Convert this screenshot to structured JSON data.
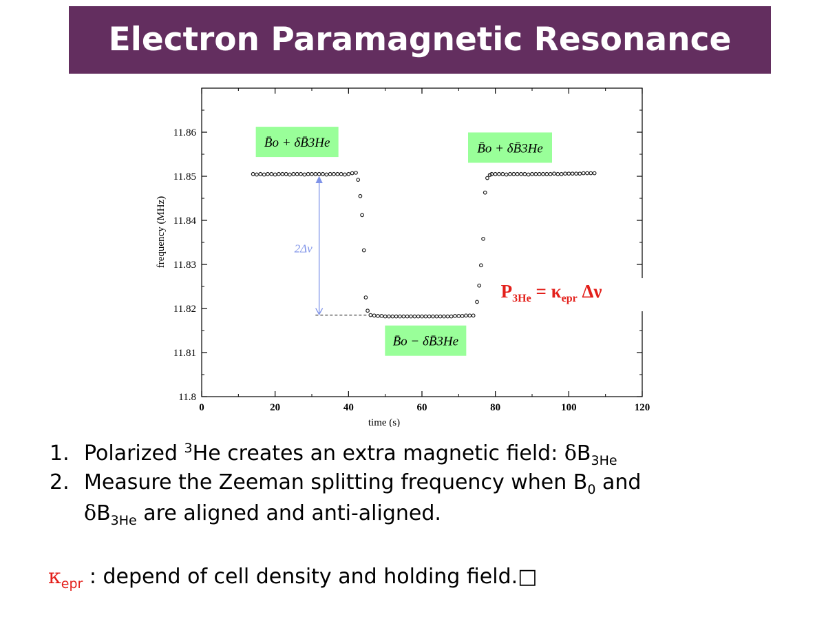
{
  "slide": {
    "title": "Electron Paramagnetic Resonance"
  },
  "chart_data": {
    "type": "scatter",
    "xlabel": "time (s)",
    "ylabel": "frequency (MHz)",
    "xlim": [
      0,
      120
    ],
    "ylim": [
      11.8,
      11.87
    ],
    "x_ticks": [
      "0",
      "20",
      "40",
      "60",
      "80",
      "100",
      "120"
    ],
    "y_ticks": [
      "11.8",
      "11.81",
      "11.82",
      "11.83",
      "11.84",
      "11.85",
      "11.86"
    ],
    "grid": false,
    "series": [
      {
        "x": [
          14,
          15,
          16,
          17,
          18,
          19,
          20,
          21,
          22,
          23,
          24,
          25,
          26,
          27,
          28,
          29,
          30,
          31,
          32,
          33,
          34,
          35,
          36,
          37,
          38,
          39,
          40,
          41,
          42,
          42.6,
          43.2,
          43.7,
          44.2,
          44.7,
          45.2,
          46,
          47,
          48,
          49,
          50,
          51,
          52,
          53,
          54,
          55,
          56,
          57,
          58,
          59,
          60,
          61,
          62,
          63,
          64,
          65,
          66,
          67,
          68,
          69,
          70,
          71,
          72,
          73,
          74,
          75,
          75.6,
          76.1,
          76.7,
          77.2,
          77.8,
          78.5,
          79,
          80,
          81,
          82,
          83,
          84,
          85,
          86,
          87,
          88,
          89,
          90,
          91,
          92,
          93,
          94,
          95,
          96,
          97,
          98,
          99,
          100,
          101,
          102,
          103,
          104,
          105,
          106,
          107
        ],
        "y": [
          11.8505,
          11.8504,
          11.8505,
          11.8504,
          11.8505,
          11.8505,
          11.8504,
          11.8505,
          11.8505,
          11.8505,
          11.8504,
          11.8505,
          11.8505,
          11.8505,
          11.8504,
          11.8505,
          11.8505,
          11.8505,
          11.8505,
          11.8505,
          11.8504,
          11.8505,
          11.8505,
          11.8505,
          11.8505,
          11.8504,
          11.8505,
          11.8507,
          11.8508,
          11.8492,
          11.8455,
          11.8412,
          11.8332,
          11.8225,
          11.8195,
          11.8185,
          11.8184,
          11.8183,
          11.8183,
          11.8182,
          11.8182,
          11.8182,
          11.8182,
          11.8182,
          11.8182,
          11.8182,
          11.8182,
          11.8182,
          11.8182,
          11.8182,
          11.8182,
          11.8182,
          11.8182,
          11.8182,
          11.8182,
          11.8182,
          11.8182,
          11.8182,
          11.8183,
          11.8183,
          11.8183,
          11.8184,
          11.8184,
          11.8184,
          11.8215,
          11.8252,
          11.8298,
          11.8358,
          11.8463,
          11.8496,
          11.8503,
          11.8505,
          11.8505,
          11.8505,
          11.8505,
          11.8504,
          11.8505,
          11.8505,
          11.8505,
          11.8505,
          11.8505,
          11.8504,
          11.8505,
          11.8505,
          11.8505,
          11.8505,
          11.8505,
          11.8505,
          11.8506,
          11.8505,
          11.8505,
          11.8506,
          11.8506,
          11.8506,
          11.8506,
          11.8506,
          11.8507,
          11.8507,
          11.8507,
          11.8507
        ]
      }
    ],
    "annotations": {
      "arrow_label": "2Δν",
      "arrow_x": 32,
      "arrow_y_top": 11.8505,
      "arrow_y_bottom": 11.8185,
      "baseline_x": [
        31,
        45
      ],
      "baseline_y": 11.8185,
      "box_top_left": {
        "label": "B̄o + δB̄3He",
        "x": 26,
        "y": 11.8578
      },
      "box_top_right": {
        "label": "B̄o + δB̄3He",
        "x": 84,
        "y": 11.8565
      },
      "box_bottom": {
        "label": "B̄o − δB̄3He",
        "x": 61,
        "y": 11.8127
      },
      "box_color": "#99ff99",
      "arrow_color": "#7f93e8",
      "formula": {
        "p": "P",
        "p_sub": "3He",
        "eq": " = ",
        "kappa": "κ",
        "kappa_sub": "epr",
        "delta_nu": " Δν",
        "color": "#e3201b"
      }
    }
  },
  "bullets": {
    "item1": {
      "num": "1.",
      "text_a": "Polarized ",
      "sup": "3",
      "text_b": "He creates an extra magnetic field: ",
      "delta": "δ",
      "b": "B",
      "sub": "3He"
    },
    "item2": {
      "num": "2.",
      "line1_a": "Measure the Zeeman splitting frequency when B",
      "line1_sub": "0",
      "line1_b": " and",
      "delta": "δ",
      "b": "B",
      "sub": "3He",
      "line2_b": " are aligned and anti-aligned."
    },
    "kappa": {
      "symbol": "κ",
      "sub": "epr",
      "text": " : depend of cell density and holding field.",
      "box_glyph": "□",
      "color": "#e3201b"
    }
  }
}
